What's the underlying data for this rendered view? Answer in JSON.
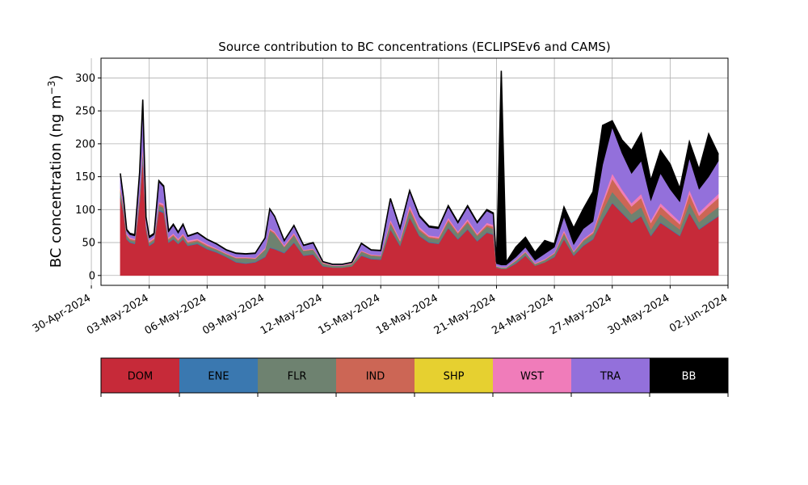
{
  "chart_data": {
    "type": "area",
    "title": "Source contribution to BC concentrations (ECLIPSEv6 and CAMS)",
    "ylabel": "BC concentration (ng m⁻³)",
    "ylabel_main": "BC concentration (ng m",
    "ylabel_sup": "−3",
    "ylabel_close": ")",
    "xlabel": "",
    "grid": true,
    "x_range": [
      "2024-04-30T12:00",
      "2024-06-02T00:00"
    ],
    "ylim": [
      -15,
      330
    ],
    "y_ticks": [
      0,
      50,
      100,
      150,
      200,
      250,
      300
    ],
    "x_ticks": [
      {
        "date": "2024-04-30",
        "label": "30-Apr-2024"
      },
      {
        "date": "2024-05-03",
        "label": "03-May-2024"
      },
      {
        "date": "2024-05-06",
        "label": "06-May-2024"
      },
      {
        "date": "2024-05-09",
        "label": "09-May-2024"
      },
      {
        "date": "2024-05-12",
        "label": "12-May-2024"
      },
      {
        "date": "2024-05-15",
        "label": "15-May-2024"
      },
      {
        "date": "2024-05-18",
        "label": "18-May-2024"
      },
      {
        "date": "2024-05-21",
        "label": "21-May-2024"
      },
      {
        "date": "2024-05-24",
        "label": "24-May-2024"
      },
      {
        "date": "2024-05-27",
        "label": "27-May-2024"
      },
      {
        "date": "2024-05-30",
        "label": "30-May-2024"
      },
      {
        "date": "2024-06-02",
        "label": "02-Jun-2024"
      }
    ],
    "series_order": [
      "DOM",
      "ENE",
      "FLR",
      "IND",
      "SHP",
      "WST",
      "TRA",
      "BB"
    ],
    "legend": [
      {
        "name": "DOM",
        "color": "#c62a39",
        "text_color": "#000000"
      },
      {
        "name": "ENE",
        "color": "#3a78b0",
        "text_color": "#000000"
      },
      {
        "name": "FLR",
        "color": "#6e8270",
        "text_color": "#000000"
      },
      {
        "name": "IND",
        "color": "#cc6655",
        "text_color": "#000000"
      },
      {
        "name": "SHP",
        "color": "#e6d030",
        "text_color": "#000000"
      },
      {
        "name": "WST",
        "color": "#f07cba",
        "text_color": "#000000"
      },
      {
        "name": "TRA",
        "color": "#9370db",
        "text_color": "#000000"
      },
      {
        "name": "BB",
        "color": "#000000",
        "text_color": "#ffffff"
      }
    ],
    "x": [
      "2024-05-01T12:00",
      "2024-05-01T16:00",
      "2024-05-01T20:00",
      "2024-05-02T00:00",
      "2024-05-02T06:00",
      "2024-05-02T12:00",
      "2024-05-02T16:00",
      "2024-05-02T20:00",
      "2024-05-03T00:00",
      "2024-05-03T06:00",
      "2024-05-03T12:00",
      "2024-05-03T18:00",
      "2024-05-04T00:00",
      "2024-05-04T06:00",
      "2024-05-04T12:00",
      "2024-05-04T18:00",
      "2024-05-05T00:00",
      "2024-05-05T12:00",
      "2024-05-06T00:00",
      "2024-05-06T12:00",
      "2024-05-07T00:00",
      "2024-05-07T12:00",
      "2024-05-08T00:00",
      "2024-05-08T12:00",
      "2024-05-09T00:00",
      "2024-05-09T06:00",
      "2024-05-09T12:00",
      "2024-05-10T00:00",
      "2024-05-10T12:00",
      "2024-05-11T00:00",
      "2024-05-11T12:00",
      "2024-05-12T00:00",
      "2024-05-12T12:00",
      "2024-05-13T00:00",
      "2024-05-13T12:00",
      "2024-05-14T00:00",
      "2024-05-14T12:00",
      "2024-05-15T00:00",
      "2024-05-15T12:00",
      "2024-05-16T00:00",
      "2024-05-16T12:00",
      "2024-05-17T00:00",
      "2024-05-17T12:00",
      "2024-05-18T00:00",
      "2024-05-18T12:00",
      "2024-05-19T00:00",
      "2024-05-19T12:00",
      "2024-05-20T00:00",
      "2024-05-20T12:00",
      "2024-05-20T20:00",
      "2024-05-21T00:00",
      "2024-05-21T06:00",
      "2024-05-21T12:00",
      "2024-05-22T00:00",
      "2024-05-22T12:00",
      "2024-05-23T00:00",
      "2024-05-23T12:00",
      "2024-05-24T00:00",
      "2024-05-24T12:00",
      "2024-05-25T00:00",
      "2024-05-25T12:00",
      "2024-05-26T00:00",
      "2024-05-26T12:00",
      "2024-05-27T00:00",
      "2024-05-27T12:00",
      "2024-05-28T00:00",
      "2024-05-28T12:00",
      "2024-05-29T00:00",
      "2024-05-29T12:00",
      "2024-05-30T00:00",
      "2024-05-30T12:00",
      "2024-05-31T00:00",
      "2024-05-31T12:00",
      "2024-06-01T00:00",
      "2024-06-01T12:00"
    ],
    "series": [
      {
        "name": "DOM",
        "values": [
          118,
          95,
          55,
          50,
          48,
          110,
          178,
          70,
          45,
          50,
          98,
          95,
          50,
          55,
          48,
          55,
          45,
          48,
          40,
          35,
          28,
          20,
          18,
          20,
          28,
          42,
          40,
          34,
          50,
          30,
          32,
          14,
          12,
          12,
          14,
          30,
          25,
          24,
          70,
          45,
          88,
          60,
          50,
          48,
          72,
          55,
          70,
          52,
          65,
          62,
          12,
          10,
          10,
          18,
          30,
          15,
          20,
          28,
          55,
          30,
          45,
          55,
          85,
          110,
          95,
          80,
          90,
          60,
          80,
          70,
          60,
          95,
          70,
          80,
          90
        ]
      },
      {
        "name": "ENE",
        "values": [
          2,
          2,
          1,
          1,
          1,
          2,
          3,
          1,
          1,
          1,
          2,
          2,
          1,
          1,
          1,
          1,
          1,
          1,
          1,
          1,
          1,
          1,
          1,
          1,
          1,
          1,
          1,
          1,
          1,
          1,
          1,
          1,
          0,
          0,
          0,
          1,
          1,
          1,
          1,
          1,
          1,
          1,
          1,
          1,
          1,
          1,
          1,
          1,
          1,
          1,
          0,
          0,
          0,
          1,
          1,
          0,
          0,
          1,
          1,
          1,
          1,
          1,
          1,
          1,
          1,
          1,
          1,
          1,
          1,
          1,
          1,
          1,
          1,
          1,
          1
        ]
      },
      {
        "name": "FLR",
        "values": [
          6,
          5,
          4,
          3,
          3,
          6,
          8,
          4,
          3,
          3,
          6,
          6,
          3,
          4,
          3,
          4,
          3,
          3,
          3,
          3,
          3,
          5,
          7,
          4,
          10,
          25,
          22,
          8,
          10,
          6,
          6,
          3,
          3,
          3,
          3,
          5,
          4,
          4,
          8,
          5,
          10,
          7,
          6,
          6,
          9,
          7,
          9,
          7,
          8,
          8,
          2,
          2,
          2,
          3,
          4,
          2,
          3,
          4,
          7,
          4,
          6,
          7,
          12,
          16,
          14,
          12,
          13,
          9,
          12,
          10,
          9,
          14,
          10,
          12,
          13
        ]
      },
      {
        "name": "IND",
        "values": [
          4,
          3,
          2,
          2,
          2,
          4,
          6,
          2,
          2,
          2,
          3,
          3,
          2,
          2,
          2,
          2,
          2,
          2,
          2,
          1,
          1,
          1,
          1,
          1,
          1,
          2,
          2,
          1,
          2,
          1,
          1,
          1,
          0,
          0,
          1,
          1,
          1,
          1,
          3,
          2,
          4,
          3,
          2,
          2,
          3,
          2,
          3,
          2,
          3,
          3,
          0,
          0,
          0,
          1,
          1,
          1,
          1,
          1,
          3,
          1,
          2,
          2,
          10,
          20,
          15,
          12,
          14,
          10,
          12,
          10,
          8,
          14,
          10,
          12,
          14
        ]
      },
      {
        "name": "SHP",
        "values": [
          0,
          0,
          0,
          0,
          0,
          0,
          0,
          0,
          0,
          0,
          0,
          0,
          0,
          0,
          0,
          0,
          0,
          0,
          0,
          0,
          0,
          0,
          0,
          0,
          0,
          0,
          0,
          0,
          0,
          0,
          0,
          0,
          0,
          0,
          0,
          0,
          0,
          0,
          0,
          0,
          0,
          0,
          0,
          0,
          0,
          0,
          0,
          0,
          0,
          0,
          0,
          0,
          0,
          0,
          0,
          0,
          0,
          0,
          0,
          0,
          0,
          0,
          0,
          0,
          0,
          0,
          0,
          0,
          0,
          0,
          0,
          0,
          0,
          0,
          0
        ]
      },
      {
        "name": "WST",
        "values": [
          3,
          2,
          2,
          2,
          2,
          3,
          4,
          2,
          2,
          2,
          3,
          3,
          2,
          2,
          2,
          2,
          2,
          2,
          2,
          1,
          1,
          1,
          1,
          1,
          2,
          2,
          2,
          2,
          2,
          1,
          1,
          1,
          1,
          1,
          1,
          1,
          1,
          1,
          3,
          2,
          4,
          3,
          2,
          2,
          3,
          2,
          3,
          2,
          3,
          3,
          1,
          1,
          1,
          1,
          1,
          1,
          1,
          1,
          3,
          1,
          2,
          2,
          5,
          8,
          6,
          5,
          6,
          4,
          5,
          5,
          4,
          6,
          5,
          5,
          6
        ]
      },
      {
        "name": "TRA",
        "values": [
          18,
          8,
          4,
          4,
          4,
          30,
          66,
          8,
          4,
          4,
          30,
          25,
          8,
          12,
          8,
          12,
          6,
          8,
          6,
          6,
          4,
          5,
          4,
          6,
          14,
          28,
          22,
          6,
          10,
          6,
          8,
          1,
          1,
          1,
          1,
          10,
          6,
          6,
          30,
          15,
          20,
          15,
          12,
          12,
          16,
          12,
          18,
          15,
          18,
          16,
          3,
          3,
          3,
          4,
          6,
          4,
          8,
          8,
          20,
          10,
          15,
          15,
          55,
          70,
          55,
          45,
          50,
          30,
          45,
          35,
          30,
          48,
          35,
          40,
          50
        ]
      },
      {
        "name": "BB",
        "values": [
          4,
          3,
          2,
          2,
          2,
          2,
          2,
          2,
          2,
          2,
          2,
          2,
          2,
          2,
          2,
          2,
          1,
          1,
          1,
          1,
          1,
          1,
          1,
          1,
          1,
          1,
          1,
          1,
          1,
          1,
          1,
          0,
          0,
          0,
          0,
          1,
          1,
          1,
          2,
          2,
          2,
          2,
          2,
          2,
          2,
          2,
          2,
          2,
          2,
          2,
          2,
          295,
          4,
          15,
          15,
          12,
          20,
          5,
          15,
          25,
          30,
          45,
          60,
          10,
          20,
          35,
          42,
          30,
          35,
          38,
          20,
          25,
          30,
          65,
          10
        ]
      }
    ]
  }
}
